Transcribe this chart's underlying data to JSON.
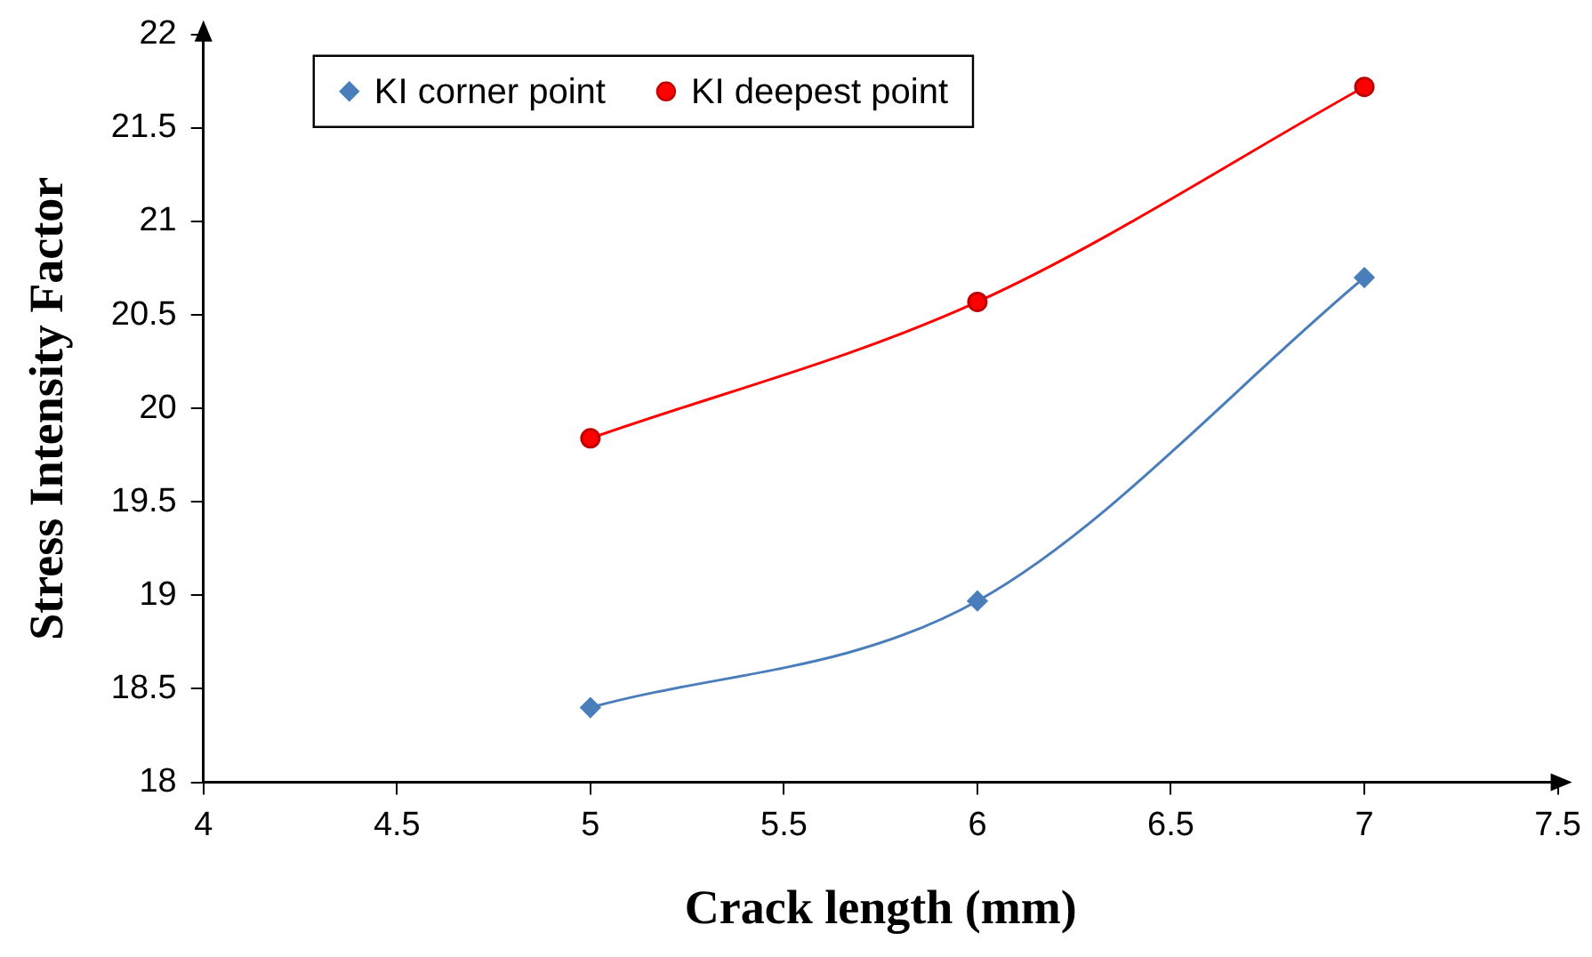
{
  "chart_data": {
    "type": "line",
    "xlabel": "Crack length (mm)",
    "ylabel": "Stress Intensity Factor",
    "x": [
      5,
      6,
      7
    ],
    "series": [
      {
        "name": "KI corner point",
        "color": "#4a7ebb",
        "values": [
          18.4,
          18.97,
          20.7
        ],
        "marker": "diamond"
      },
      {
        "name": "KI deepest point",
        "color": "#ff0000",
        "values": [
          19.84,
          20.57,
          21.72
        ],
        "marker": "circle"
      }
    ],
    "xlim": [
      4,
      7.5
    ],
    "xticks": [
      4,
      4.5,
      5,
      5.5,
      6,
      6.5,
      7,
      7.5
    ],
    "ylim": [
      18,
      22
    ],
    "yticks": [
      18,
      18.5,
      19,
      19.5,
      20,
      20.5,
      21,
      21.5,
      22
    ],
    "grid": false,
    "legend": "top left",
    "line_style": "solid"
  }
}
